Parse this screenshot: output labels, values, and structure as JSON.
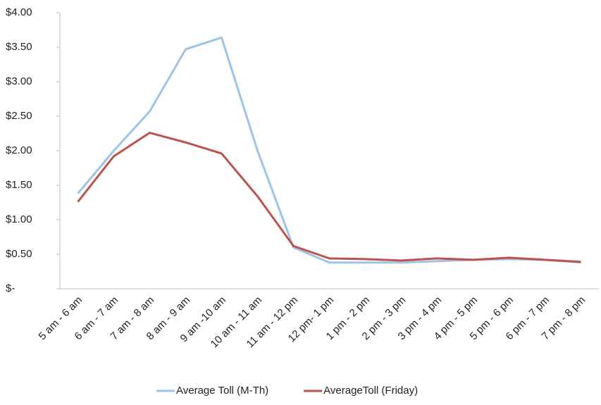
{
  "chart_data": {
    "type": "line",
    "categories": [
      "5 am - 6 am",
      "6 am - 7 am",
      "7 am - 8 am",
      "8 am - 9 am",
      "9 am -10 am",
      "10 am - 11 am",
      "11 am - 12 pm",
      "12 pm- 1 pm",
      "1 pm - 2 pm",
      "2 pm - 3 pm",
      "3 pm - 4 pm",
      "4 pm - 5 pm",
      "5 pm - 6 pm",
      "6 pm - 7 pm",
      "7 pm - 8 pm"
    ],
    "series": [
      {
        "name": "Average Toll (M-Th)",
        "color": "#9dc3e6",
        "values": [
          1.38,
          2.0,
          2.57,
          3.47,
          3.64,
          2.0,
          0.6,
          0.38,
          0.38,
          0.38,
          0.4,
          0.42,
          0.43,
          0.42,
          0.38
        ]
      },
      {
        "name": "AverageToll (Friday)",
        "color": "#c0504d",
        "values": [
          1.26,
          1.92,
          2.26,
          2.12,
          1.96,
          1.34,
          0.62,
          0.44,
          0.43,
          0.41,
          0.44,
          0.42,
          0.45,
          0.42,
          0.39
        ]
      }
    ],
    "ylim": [
      0,
      4
    ],
    "yticks": [
      {
        "value": 0,
        "label": "$-"
      },
      {
        "value": 0.5,
        "label": "$0.50"
      },
      {
        "value": 1,
        "label": "$1.00"
      },
      {
        "value": 1.5,
        "label": "$1.50"
      },
      {
        "value": 2,
        "label": "$2.00"
      },
      {
        "value": 2.5,
        "label": "$2.50"
      },
      {
        "value": 3,
        "label": "$3.00"
      },
      {
        "value": 3.5,
        "label": "$3.50"
      },
      {
        "value": 4,
        "label": "$4.00"
      }
    ],
    "grid": false,
    "legend": "bottom"
  }
}
